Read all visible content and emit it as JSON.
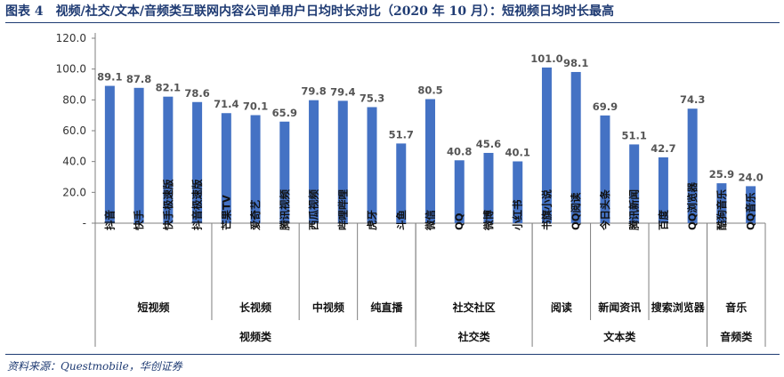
{
  "title": "图表 4　视频/社交/文本/音频类互联网内容公司单用户日均时长对比（2020 年 10 月）：短视频日均时长最高",
  "source": "资料来源：Questmobile，华创证券",
  "chart_data": {
    "type": "bar",
    "ylim": [
      0,
      120
    ],
    "yticks": [
      "120.0",
      "100.0",
      "80.0",
      "60.0",
      "40.0",
      "20.0",
      "-"
    ],
    "bar_color": "#4472c4",
    "categories": [
      "抖音",
      "快手",
      "快手极速版",
      "抖音极速版",
      "芒果TV",
      "爱奇艺",
      "腾讯视频",
      "西瓜视频",
      "哔哩哔哩",
      "虎牙",
      "斗鱼",
      "微信",
      "QQ",
      "微博",
      "小红书",
      "书旗小说",
      "QQ阅读",
      "今日头条",
      "腾讯新闻",
      "百度",
      "QQ浏览器",
      "酷狗音乐",
      "QQ音乐"
    ],
    "values": [
      89.1,
      87.8,
      82.1,
      78.6,
      71.4,
      70.1,
      65.9,
      79.8,
      79.4,
      75.3,
      51.7,
      80.5,
      40.8,
      45.6,
      40.1,
      101.0,
      98.1,
      69.9,
      51.1,
      42.7,
      74.3,
      25.9,
      24.0
    ],
    "value_labels": [
      "89.1",
      "87.8",
      "82.1",
      "78.6",
      "71.4",
      "70.1",
      "65.9",
      "79.8",
      "79.4",
      "75.3",
      "51.7",
      "80.5",
      "40.8",
      "45.6",
      "40.1",
      "101.0",
      "98.1",
      "69.9",
      "51.1",
      "42.7",
      "74.3",
      "25.9",
      "24.0"
    ],
    "subgroups": [
      {
        "label": "短视频",
        "start": 0,
        "end": 3
      },
      {
        "label": "长视频",
        "start": 4,
        "end": 6
      },
      {
        "label": "中视频",
        "start": 7,
        "end": 8
      },
      {
        "label": "纯直播",
        "start": 9,
        "end": 10
      },
      {
        "label": "社交社区",
        "start": 11,
        "end": 14
      },
      {
        "label": "阅读",
        "start": 15,
        "end": 16
      },
      {
        "label": "新闻资讯",
        "start": 17,
        "end": 18
      },
      {
        "label": "搜索浏览器",
        "start": 19,
        "end": 20
      },
      {
        "label": "音乐",
        "start": 21,
        "end": 22
      }
    ],
    "groups": [
      {
        "label": "视频类",
        "start": 0,
        "end": 10
      },
      {
        "label": "社交类",
        "start": 11,
        "end": 14
      },
      {
        "label": "文本类",
        "start": 15,
        "end": 20
      },
      {
        "label": "音频类",
        "start": 21,
        "end": 22
      }
    ]
  }
}
